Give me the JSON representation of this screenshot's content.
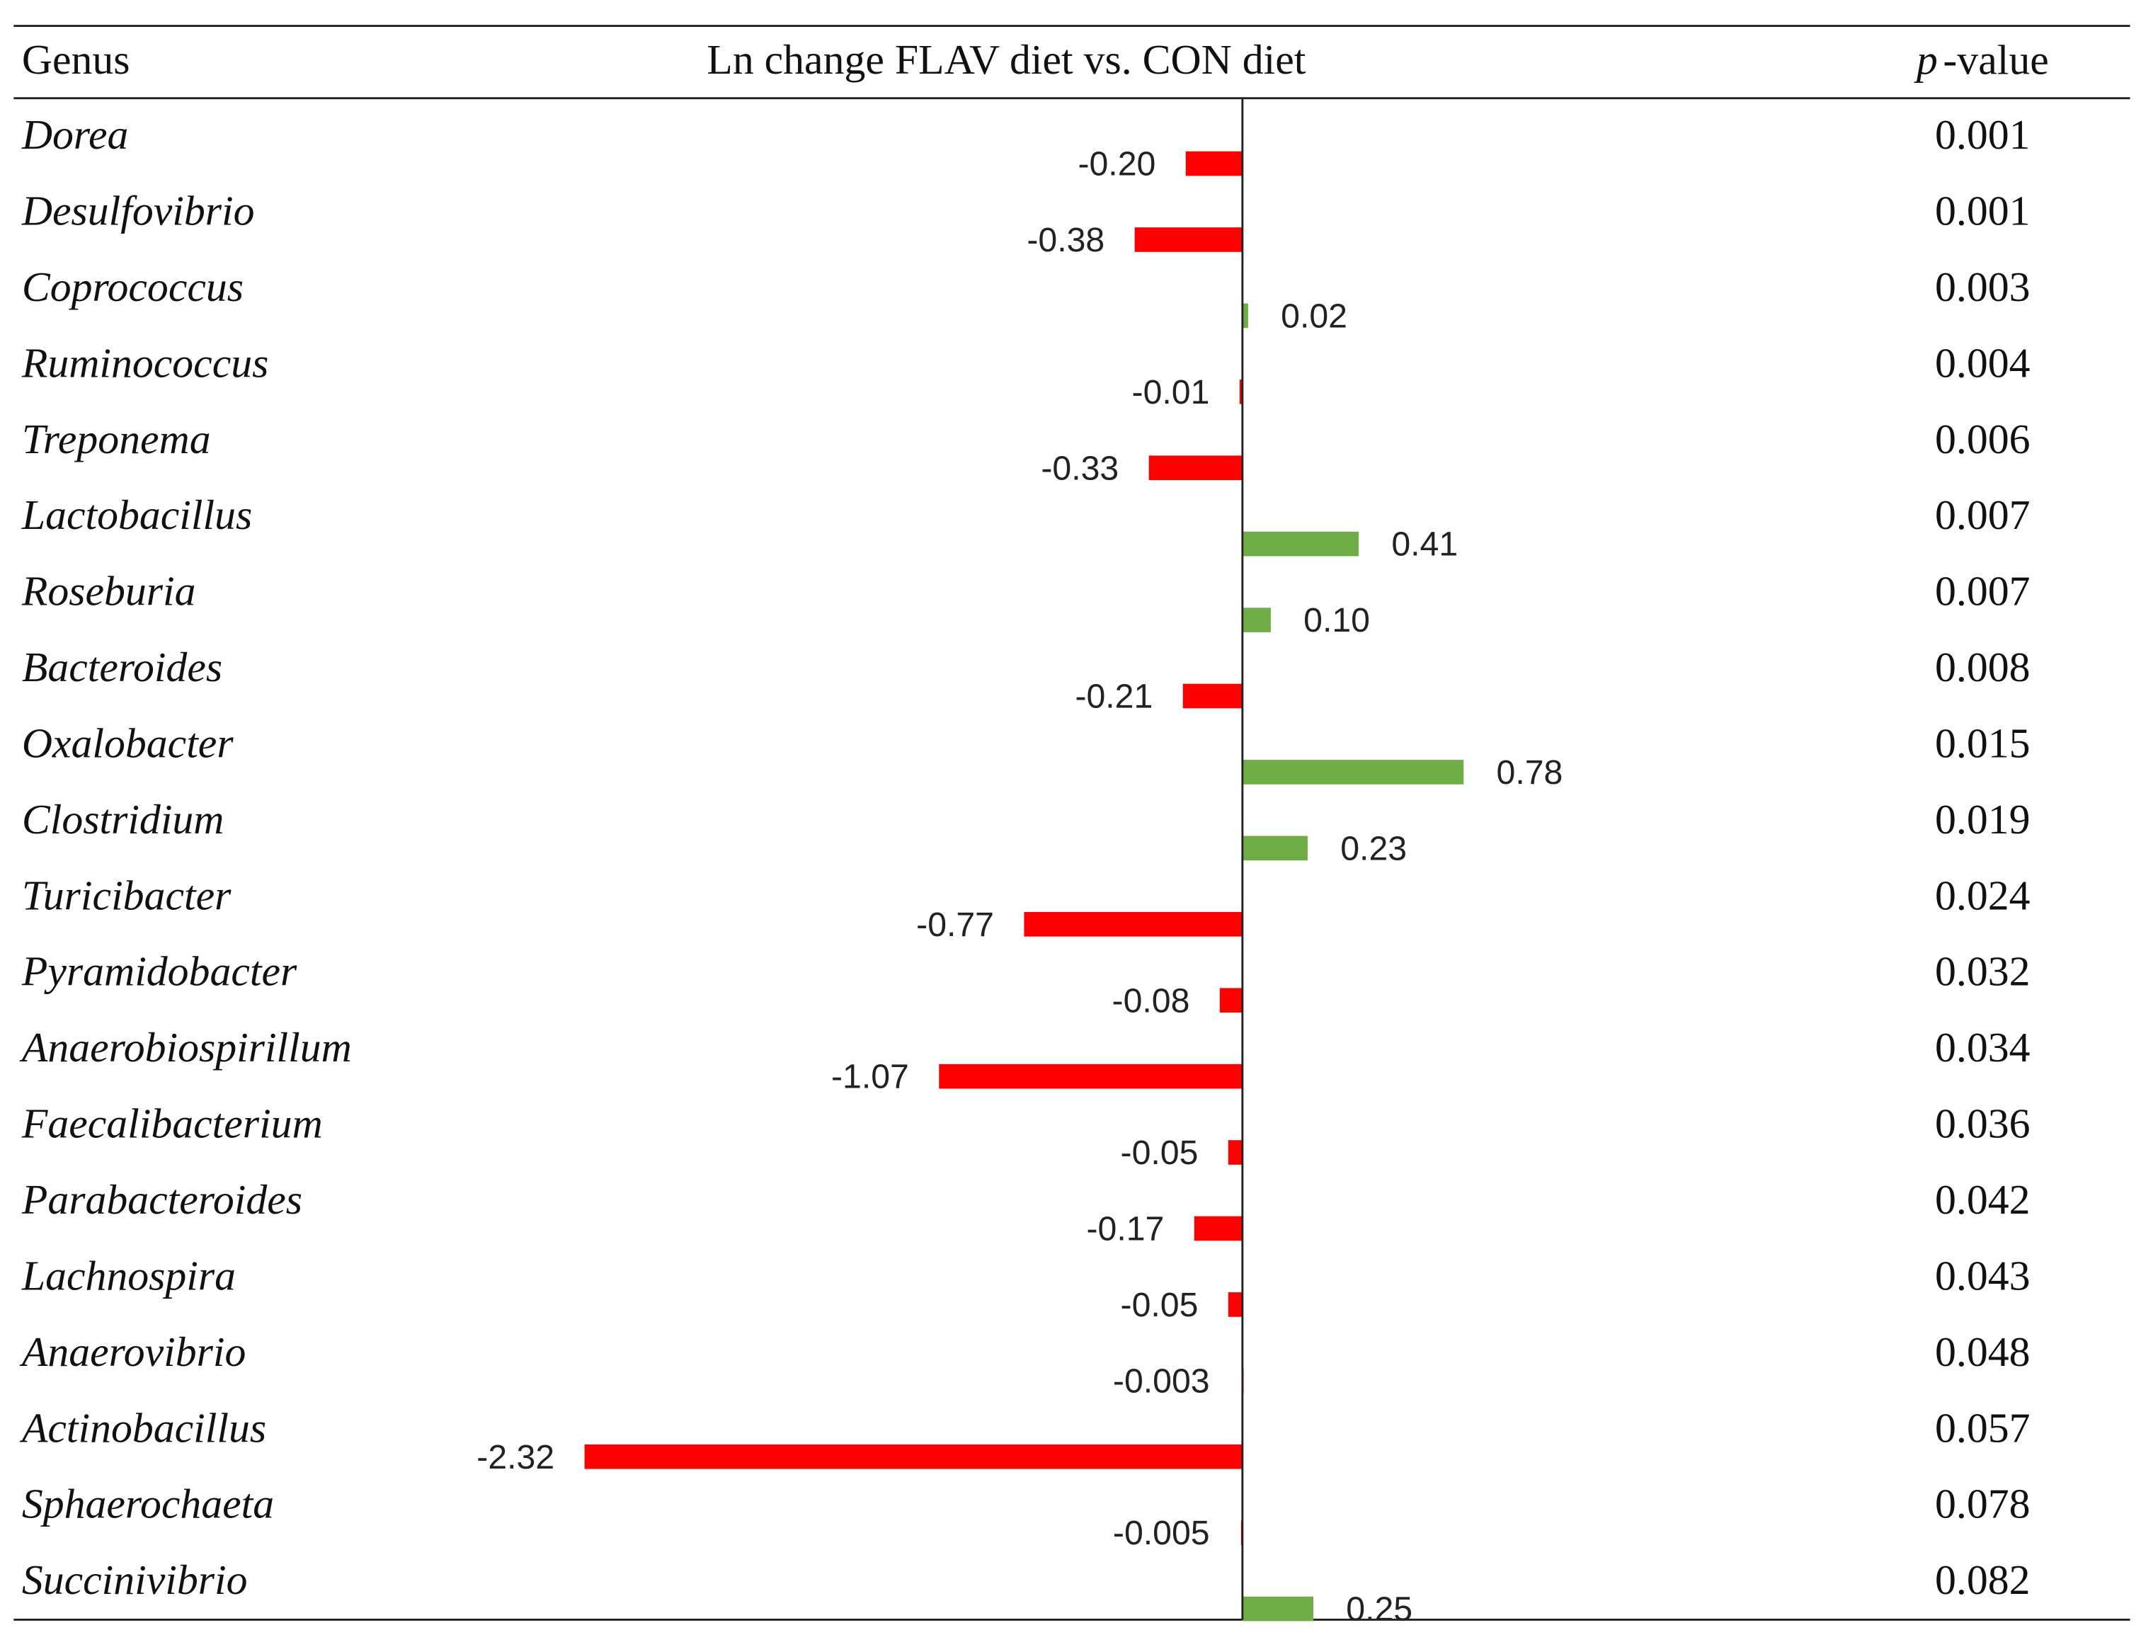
{
  "chart_data": {
    "type": "bar",
    "orientation": "horizontal",
    "header_category": "Genus",
    "title": "Ln change FLAV diet vs. CON diet",
    "p_header_italic": "p",
    "p_header_rest": "-value",
    "categories": [
      "Dorea",
      "Desulfovibrio",
      "Coprococcus",
      "Ruminococcus",
      "Treponema",
      "Lactobacillus",
      "Roseburia",
      "Bacteroides",
      "Oxalobacter",
      "Clostridium",
      "Turicibacter",
      "Pyramidobacter",
      "Anaerobiospirillum",
      "Faecalibacterium",
      "Parabacteroides",
      "Lachnospira",
      "Anaerovibrio",
      "Actinobacillus",
      "Sphaerochaeta",
      "Succinivibrio"
    ],
    "values": [
      -0.2,
      -0.38,
      0.02,
      -0.01,
      -0.33,
      0.41,
      0.1,
      -0.21,
      0.78,
      0.23,
      -0.77,
      -0.08,
      -1.07,
      -0.05,
      -0.17,
      -0.05,
      -0.003,
      -2.32,
      -0.005,
      0.25
    ],
    "value_labels": [
      "-0.20",
      "-0.38",
      "0.02",
      "-0.01",
      "-0.33",
      "0.41",
      "0.10",
      "-0.21",
      "0.78",
      "0.23",
      "-0.77",
      "-0.08",
      "-1.07",
      "-0.05",
      "-0.17",
      "-0.05",
      "-0.003",
      "-2.32",
      "-0.005",
      "0.25"
    ],
    "p_values": [
      0.001,
      0.001,
      0.003,
      0.004,
      0.006,
      0.007,
      0.007,
      0.008,
      0.015,
      0.019,
      0.024,
      0.032,
      0.034,
      0.036,
      0.042,
      0.043,
      0.048,
      0.057,
      0.078,
      0.082
    ],
    "positive_color": "#70ad47",
    "negative_color": "#ff0000",
    "xlim": [
      -2.85,
      1.05
    ]
  }
}
